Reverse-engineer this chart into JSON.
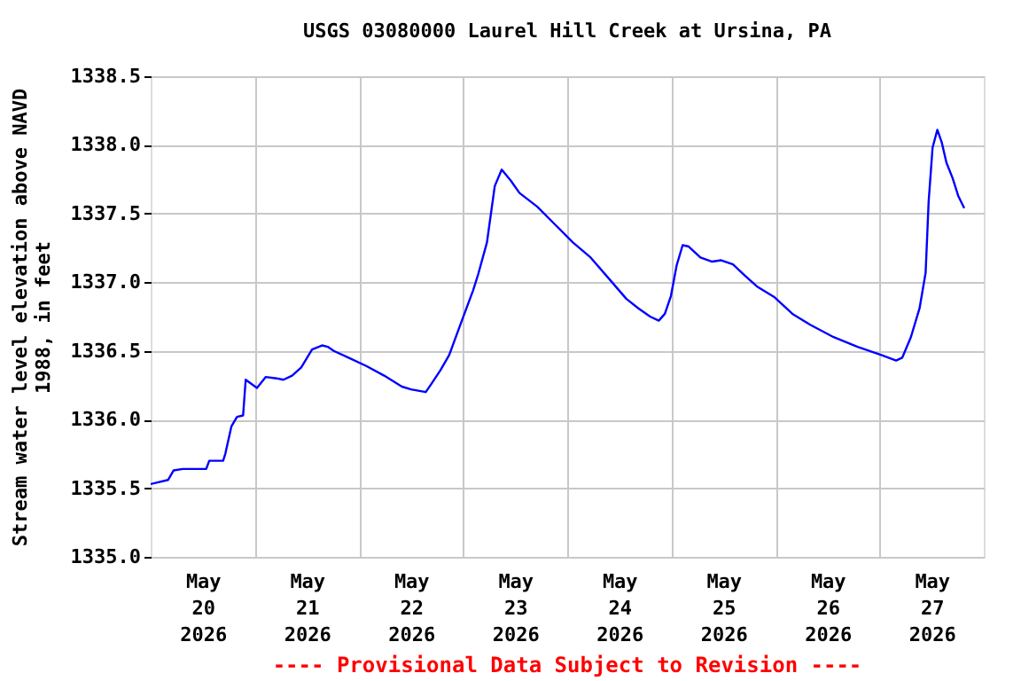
{
  "chart_data": {
    "type": "line",
    "title": "USGS 03080000 Laurel Hill Creek at Ursina, PA",
    "ylabel": "Stream water level elevation above NAVD 1988, in feet",
    "annotations": [
      "---- Provisional Data Subject to Revision ----"
    ],
    "x": [
      "2026-05-20T00:00",
      "2026-05-20T04:00",
      "2026-05-20T05:18",
      "2026-05-20T07:24",
      "2026-05-20T12:48",
      "2026-05-20T13:30",
      "2026-05-20T16:42",
      "2026-05-20T17:12",
      "2026-05-20T18:36",
      "2026-05-20T19:54",
      "2026-05-20T21:18",
      "2026-05-20T21:54",
      "2026-05-21T00:30",
      "2026-05-21T02:30",
      "2026-05-21T05:00",
      "2026-05-21T06:36",
      "2026-05-21T08:36",
      "2026-05-21T10:42",
      "2026-05-21T13:12",
      "2026-05-21T15:30",
      "2026-05-21T16:48",
      "2026-05-21T18:12",
      "2026-05-21T21:36",
      "2026-05-22T01:42",
      "2026-05-22T05:48",
      "2026-05-22T09:54",
      "2026-05-22T12:00",
      "2026-05-22T15:24",
      "2026-05-22T16:42",
      "2026-05-22T18:48",
      "2026-05-22T20:48",
      "2026-05-22T23:36",
      "2026-05-23T02:18",
      "2026-05-23T03:30",
      "2026-05-23T05:30",
      "2026-05-23T07:18",
      "2026-05-23T08:54",
      "2026-05-23T11:00",
      "2026-05-23T13:00",
      "2026-05-23T17:06",
      "2026-05-23T21:12",
      "2026-05-24T01:18",
      "2026-05-24T05:24",
      "2026-05-24T09:30",
      "2026-05-24T13:36",
      "2026-05-24T16:24",
      "2026-05-24T19:06",
      "2026-05-24T21:06",
      "2026-05-24T22:30",
      "2026-05-24T23:54",
      "2026-05-25T01:12",
      "2026-05-25T02:36",
      "2026-05-25T04:00",
      "2026-05-25T06:42",
      "2026-05-25T09:24",
      "2026-05-25T11:30",
      "2026-05-25T14:12",
      "2026-05-25T16:54",
      "2026-05-25T19:42",
      "2026-05-25T23:48",
      "2026-05-26T03:54",
      "2026-05-26T08:00",
      "2026-05-26T13:24",
      "2026-05-26T18:54",
      "2026-05-27T00:24",
      "2026-05-27T03:48",
      "2026-05-27T05:12",
      "2026-05-27T07:12",
      "2026-05-27T09:12",
      "2026-05-27T10:36",
      "2026-05-27T11:18",
      "2026-05-27T12:12",
      "2026-05-27T13:18",
      "2026-05-27T14:18",
      "2026-05-27T15:24",
      "2026-05-27T16:48",
      "2026-05-27T18:06",
      "2026-05-27T19:30"
    ],
    "series": [
      {
        "color": "#0000ff",
        "values": [
          1335.53,
          1335.56,
          1335.63,
          1335.64,
          1335.64,
          1335.7,
          1335.7,
          1335.75,
          1335.95,
          1336.02,
          1336.03,
          1336.29,
          1336.23,
          1336.31,
          1336.3,
          1336.29,
          1336.32,
          1336.38,
          1336.51,
          1336.54,
          1336.53,
          1336.5,
          1336.45,
          1336.39,
          1336.32,
          1336.24,
          1336.22,
          1336.2,
          1336.26,
          1336.36,
          1336.47,
          1336.71,
          1336.94,
          1337.06,
          1337.29,
          1337.7,
          1337.82,
          1337.74,
          1337.65,
          1337.55,
          1337.42,
          1337.29,
          1337.18,
          1337.03,
          1336.88,
          1336.81,
          1336.75,
          1336.72,
          1336.77,
          1336.9,
          1337.12,
          1337.27,
          1337.26,
          1337.18,
          1337.15,
          1337.16,
          1337.13,
          1337.05,
          1336.97,
          1336.89,
          1336.77,
          1336.69,
          1336.6,
          1336.53,
          1336.47,
          1336.43,
          1336.45,
          1336.6,
          1336.81,
          1337.07,
          1337.59,
          1337.98,
          1338.11,
          1338.02,
          1337.87,
          1337.76,
          1337.63,
          1337.54
        ]
      }
    ],
    "xlim": [
      "2026-05-20T00:00",
      "2026-05-28T00:00"
    ],
    "xticks": [
      {
        "value": "2026-05-20T12:00",
        "label": "May 20 2026"
      },
      {
        "value": "2026-05-21T00:00",
        "label": null
      },
      {
        "value": "2026-05-21T12:00",
        "label": "May 21 2026"
      },
      {
        "value": "2026-05-22T00:00",
        "label": null
      },
      {
        "value": "2026-05-22T12:00",
        "label": "May 22 2026"
      },
      {
        "value": "2026-05-23T00:00",
        "label": null
      },
      {
        "value": "2026-05-23T12:00",
        "label": "May 23 2026"
      },
      {
        "value": "2026-05-24T00:00",
        "label": null
      },
      {
        "value": "2026-05-24T12:00",
        "label": "May 24 2026"
      },
      {
        "value": "2026-05-25T00:00",
        "label": null
      },
      {
        "value": "2026-05-25T12:00",
        "label": "May 25 2026"
      },
      {
        "value": "2026-05-26T00:00",
        "label": null
      },
      {
        "value": "2026-05-26T12:00",
        "label": "May 26 2026"
      },
      {
        "value": "2026-05-27T00:00",
        "label": null
      },
      {
        "value": "2026-05-27T12:00",
        "label": "May 27 2026"
      }
    ],
    "ylim": [
      1335.0,
      1338.5
    ],
    "yticks": [
      {
        "value": 1335.0,
        "label": "1335.0"
      },
      {
        "value": 1335.5,
        "label": "1335.5"
      },
      {
        "value": 1336.0,
        "label": "1336.0"
      },
      {
        "value": 1336.5,
        "label": "1336.5"
      },
      {
        "value": 1337.0,
        "label": "1337.0"
      },
      {
        "value": 1337.5,
        "label": "1337.5"
      },
      {
        "value": 1338.0,
        "label": "1338.0"
      },
      {
        "value": 1338.5,
        "label": "1338.5"
      }
    ],
    "grid": true
  }
}
